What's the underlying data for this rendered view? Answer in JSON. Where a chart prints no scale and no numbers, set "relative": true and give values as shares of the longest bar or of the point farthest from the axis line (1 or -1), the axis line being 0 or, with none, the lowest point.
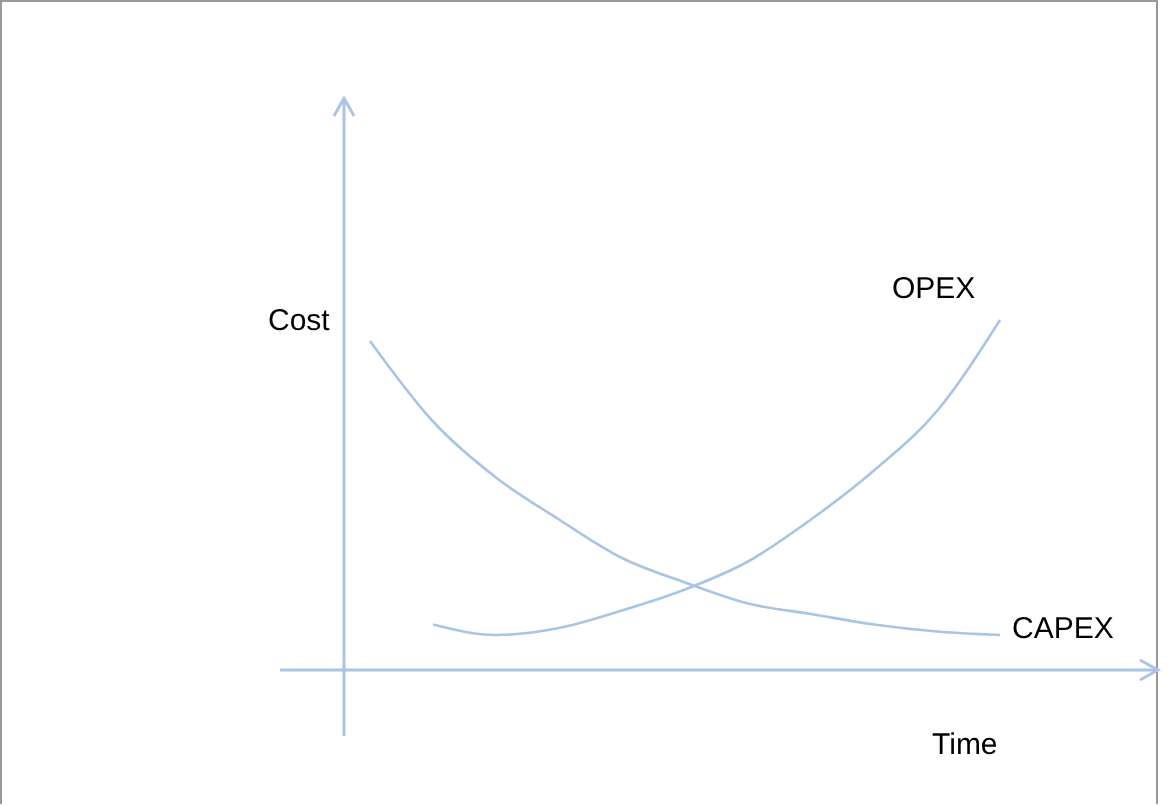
{
  "chart_data": {
    "type": "line",
    "relative": true,
    "xlabel": "Time",
    "ylabel": "Cost",
    "marker": "none",
    "categories": [
      null,
      null,
      null,
      null,
      null,
      null,
      null,
      null,
      null,
      null,
      null
    ],
    "series": [
      {
        "name": "CAPEX",
        "color": "#a9c4e4",
        "values": [
          0.94,
          0.71,
          0.55,
          0.43,
          0.32,
          0.25,
          0.19,
          0.16,
          0.13,
          0.11,
          0.1
        ]
      },
      {
        "name": "OPEX",
        "color": "#a9c4e4",
        "values": [
          null,
          0.13,
          0.1,
          0.12,
          0.17,
          0.23,
          0.31,
          0.43,
          0.57,
          0.74,
          1.0
        ]
      }
    ]
  }
}
